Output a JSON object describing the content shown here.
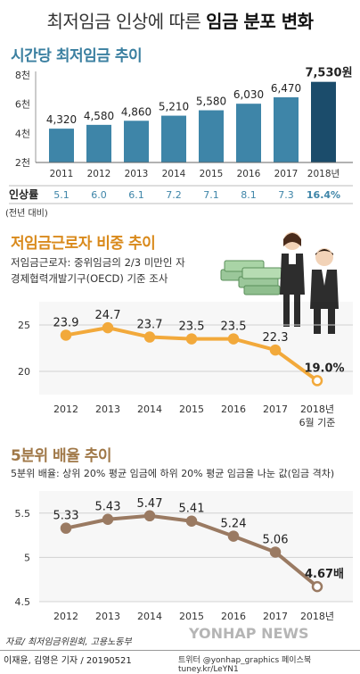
{
  "header": {
    "title_plain": "최저임금 인상에 따른 ",
    "title_bold": "임금 분포 변화"
  },
  "sections": {
    "s1": {
      "title": "시간당 최저임금 추이"
    },
    "s2": {
      "title": "저임금근로자 비중 추이",
      "note1": "저임금근로자: 중위임금의 2/3 미만인 자",
      "note2": "경제협력개발기구(OECD) 기준 조사"
    },
    "s3": {
      "title": "5분위 배율 추이",
      "note": "5분위 배율: 상위 20% 평균 임금에 하위 20% 평균 임금을 나눈 값(임금 격차)"
    }
  },
  "colors": {
    "bar": "#3e85a8",
    "bar_highlight": "#1b4c6b",
    "line2": "#f2a93b",
    "line3": "#9a7a62",
    "rate_text": "#3e85a8"
  },
  "chart_data": [
    {
      "type": "bar",
      "title": "시간당 최저임금 추이",
      "categories": [
        "2011",
        "2012",
        "2013",
        "2014",
        "2015",
        "2016",
        "2017",
        "2018년"
      ],
      "values": [
        4320,
        4580,
        4860,
        5210,
        5580,
        6030,
        6470,
        7530
      ],
      "value_labels": [
        "4,320",
        "4,580",
        "4,860",
        "5,210",
        "5,580",
        "6,030",
        "6,470",
        "7,530원"
      ],
      "yticks": [
        "2천",
        "4천",
        "6천",
        "8천"
      ],
      "ylim": [
        2000,
        8000
      ],
      "rate_label": "인상률",
      "rate_sublabel": "(전년 대비)",
      "rates": [
        "5.1",
        "6.0",
        "6.1",
        "7.2",
        "7.1",
        "8.1",
        "7.3",
        "16.4%"
      ]
    },
    {
      "type": "line",
      "title": "저임금근로자 비중 추이",
      "categories": [
        "2012",
        "2013",
        "2014",
        "2015",
        "2016",
        "2017",
        "2018년\n6월 기준"
      ],
      "category_lines": [
        [
          "2012"
        ],
        [
          "2013"
        ],
        [
          "2014"
        ],
        [
          "2015"
        ],
        [
          "2016"
        ],
        [
          "2017"
        ],
        [
          "2018년",
          "6월 기준"
        ]
      ],
      "values": [
        23.9,
        24.7,
        23.7,
        23.5,
        23.5,
        22.3,
        19.0
      ],
      "value_labels": [
        "23.9",
        "24.7",
        "23.7",
        "23.5",
        "23.5",
        "22.3",
        "19.0%"
      ],
      "yticks": [
        "20",
        "25"
      ],
      "ylim": [
        17.5,
        27.5
      ],
      "grid": true
    },
    {
      "type": "line",
      "title": "5분위 배율 추이",
      "categories": [
        "2012",
        "2013",
        "2014",
        "2015",
        "2016",
        "2017",
        "2018년"
      ],
      "values": [
        5.33,
        5.43,
        5.47,
        5.41,
        5.24,
        5.06,
        4.67
      ],
      "value_labels": [
        "5.33",
        "5.43",
        "5.47",
        "5.41",
        "5.24",
        "5.06",
        "4.67배"
      ],
      "yticks": [
        "4.5",
        "5",
        "5.5"
      ],
      "ylim": [
        4.5,
        5.75
      ],
      "grid": true
    }
  ],
  "footer": {
    "source": "자료/ 최저임금위원회, 고용노동부",
    "credit": "이재윤, 김영은 기자 / 20190521",
    "social": "트위터 @yonhap_graphics  페이스북 tuney.kr/LeYN1",
    "watermark": "YONHAP NEWS"
  }
}
